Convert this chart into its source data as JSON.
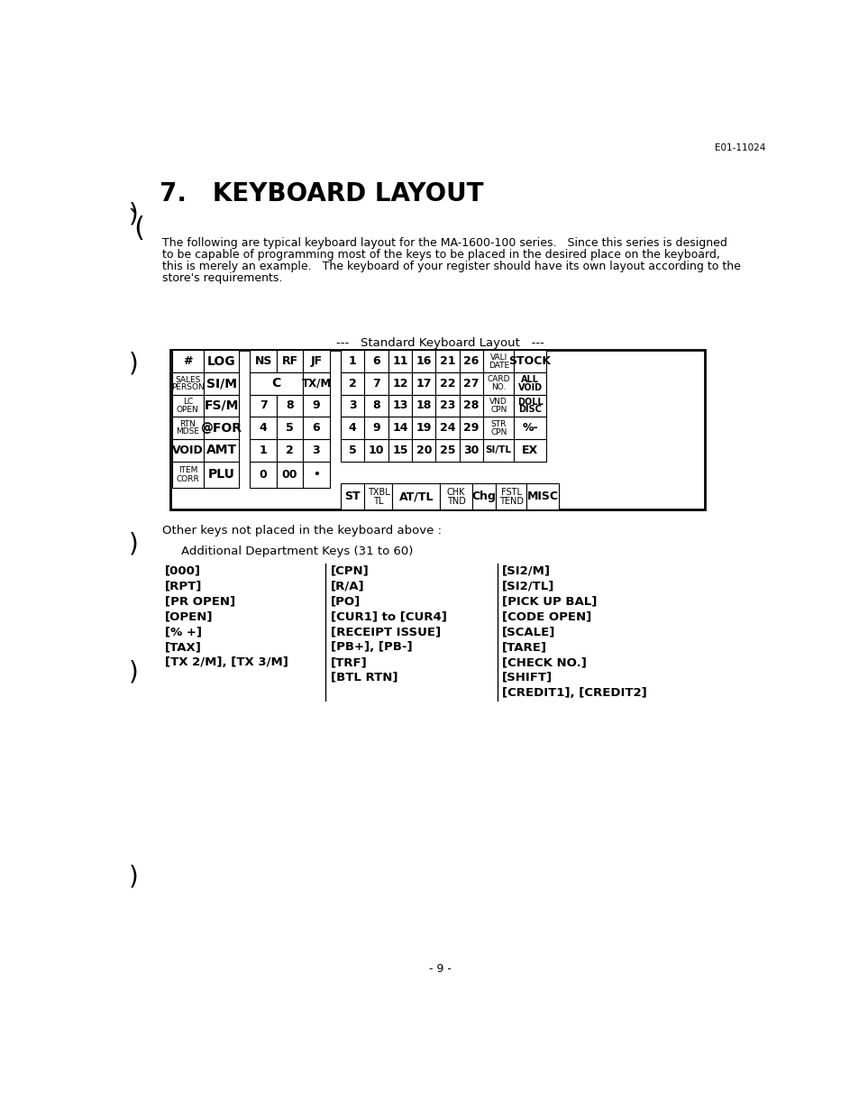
{
  "title": "7.   KEYBOARD LAYOUT",
  "header_ref": "E01-11024",
  "body_text_lines": [
    "The following are typical keyboard layout for the MA-1600-100 series.   Since this series is designed",
    "to be capable of programming most of the keys to be placed in the desired place on the keyboard,",
    "this is merely an example.   The keyboard of your register should have its own layout according to the",
    "store's requirements."
  ],
  "keyboard_subtitle": "---   Standard Keyboard Layout   ---",
  "page_number": "- 9 -",
  "other_keys_text": "Other keys not placed in the keyboard above :",
  "additional_dept_text": "Additional Department Keys (31 to 60)",
  "col1_keys": [
    "[000]",
    "[RPT]",
    "[PR OPEN]",
    "[OPEN]",
    "[% +]",
    "[TAX]",
    "[TX 2/M], [TX 3/M]"
  ],
  "col2_keys": [
    "[CPN]",
    "[R/A]",
    "[PO]",
    "[CUR1] to [CUR4]",
    "[RECEIPT ISSUE]",
    "[PB+], [PB-]",
    "[TRF]",
    "[BTL RTN]"
  ],
  "col3_keys": [
    "[SI2/M]",
    "[SI2/TL]",
    "[PICK UP BAL]",
    "[CODE OPEN]",
    "[SCALE]",
    "[TARE]",
    "[CHECK NO.]",
    "[SHIFT]",
    "[CREDIT1], [CREDIT2]"
  ],
  "bg_color": "#ffffff",
  "text_color": "#000000"
}
